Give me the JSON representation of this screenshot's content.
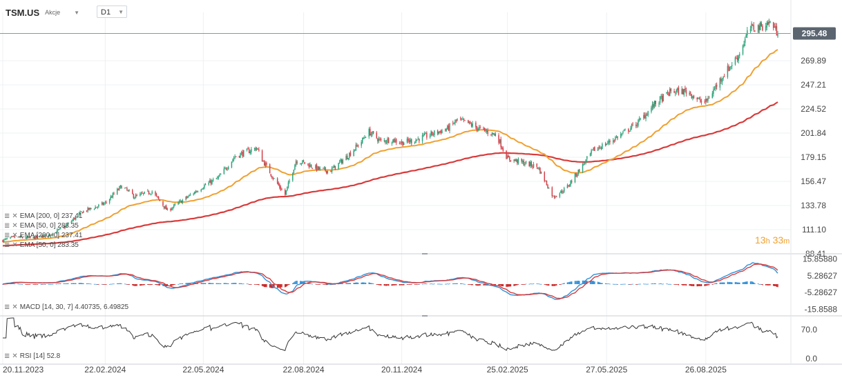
{
  "header": {
    "symbol": "TSM.US",
    "type": "Akcje",
    "timeframe": "D1"
  },
  "countdown": {
    "hours": "13",
    "h": "h",
    "minutes": "33",
    "m": "m"
  },
  "indicator_labels": {
    "ema200_a": "EMA [200, 0] 237.41",
    "ema50_a": "EMA [50, 0] 283.35",
    "ema200_b": "EMA [200, 0] 237.41",
    "ema50_b": "EMA [50, 0] 283.35",
    "macd": "MACD [14, 30, 7] 4.40735, 6.49825",
    "rsi": "RSI [14] 52.8"
  },
  "colors": {
    "up": "#2ea37a",
    "down": "#d4404a",
    "ema50": "#f0a030",
    "ema200": "#d93a3a",
    "macd": "#2f8fd8",
    "signal": "#d93a3a",
    "hist_pos": "#2f8fd8",
    "hist_neg": "#c82020",
    "rsi": "#333333",
    "price_badge": "#5a6570"
  },
  "chart_data": {
    "type": "candlestick",
    "symbol": "TSM.US",
    "timeframe": "D1",
    "last_price": 295.48,
    "price_axis": [
      "269.89",
      "247.21",
      "224.52",
      "201.84",
      "179.15",
      "156.47",
      "133.78",
      "111.10",
      "88.41"
    ],
    "ylim": [
      88.41,
      315
    ],
    "x_ticks": [
      "20.11.2023",
      "22.02.2024",
      "22.05.2024",
      "22.08.2024",
      "20.11.2024",
      "25.02.2025",
      "27.05.2025",
      "26.08.2025"
    ],
    "close_anchors": [
      [
        "20.11.2023",
        101
      ],
      [
        "01.12.2023",
        104
      ],
      [
        "15.12.2023",
        103
      ],
      [
        "01.01.2024",
        106
      ],
      [
        "15.01.2024",
        113
      ],
      [
        "01.02.2024",
        128
      ],
      [
        "15.02.2024",
        133
      ],
      [
        "22.02.2024",
        136
      ],
      [
        "08.03.2024",
        152
      ],
      [
        "20.03.2024",
        142
      ],
      [
        "05.04.2024",
        147
      ],
      [
        "19.04.2024",
        129
      ],
      [
        "05.05.2024",
        140
      ],
      [
        "22.05.2024",
        152
      ],
      [
        "05.06.2024",
        160
      ],
      [
        "20.06.2024",
        180
      ],
      [
        "10.07.2024",
        188
      ],
      [
        "15.07.2024",
        177
      ],
      [
        "25.07.2024",
        160
      ],
      [
        "05.08.2024",
        144
      ],
      [
        "15.08.2024",
        176
      ],
      [
        "22.08.2024",
        174
      ],
      [
        "05.09.2024",
        168
      ],
      [
        "15.09.2024",
        166
      ],
      [
        "01.10.2024",
        180
      ],
      [
        "15.10.2024",
        195
      ],
      [
        "20.10.2024",
        204
      ],
      [
        "01.11.2024",
        194
      ],
      [
        "10.11.2024",
        196
      ],
      [
        "20.11.2024",
        193
      ],
      [
        "01.12.2024",
        195
      ],
      [
        "15.12.2024",
        200
      ],
      [
        "01.01.2025",
        206
      ],
      [
        "10.01.2025",
        214
      ],
      [
        "20.01.2025",
        211
      ],
      [
        "01.02.2025",
        205
      ],
      [
        "15.02.2025",
        200
      ],
      [
        "25.02.2025",
        178
      ],
      [
        "15.03.2025",
        173
      ],
      [
        "25.03.2025",
        170
      ],
      [
        "08.04.2025",
        142
      ],
      [
        "20.04.2025",
        150
      ],
      [
        "01.05.2025",
        166
      ],
      [
        "15.05.2025",
        186
      ],
      [
        "27.05.2025",
        192
      ],
      [
        "10.06.2025",
        201
      ],
      [
        "25.06.2025",
        212
      ],
      [
        "10.07.2025",
        229
      ],
      [
        "25.07.2025",
        241
      ],
      [
        "10.08.2025",
        241
      ],
      [
        "20.08.2025",
        232
      ],
      [
        "26.08.2025",
        231
      ],
      [
        "10.09.2025",
        255
      ],
      [
        "25.09.2025",
        275
      ],
      [
        "05.10.2025",
        300
      ],
      [
        "15.10.2025",
        302
      ],
      [
        "25.10.2025",
        306
      ],
      [
        "31.10.2025",
        295.48
      ]
    ],
    "macd": {
      "params": [
        14,
        30,
        7
      ],
      "macd": 4.40735,
      "signal": 6.49825,
      "axis": [
        "15.85880",
        "5.28627",
        "-5.28627",
        "-15.8588"
      ],
      "ylim": [
        -15.8588,
        15.8588
      ]
    },
    "rsi": {
      "period": 14,
      "value": 52.8,
      "axis": [
        "70.0",
        "0.0"
      ],
      "ylim": [
        0,
        100
      ]
    }
  }
}
